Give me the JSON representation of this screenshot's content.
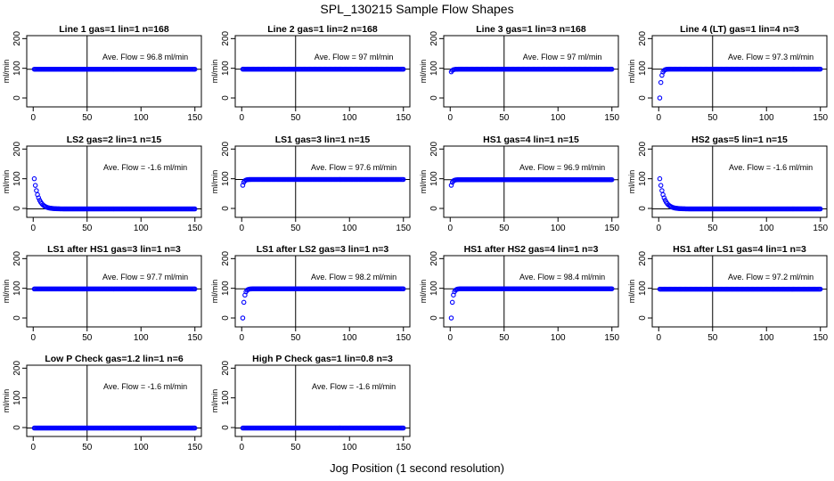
{
  "title": "SPL_130215  Sample Flow Shapes",
  "xlabel": "Jog Position (1 second resolution)",
  "chart_data": {
    "type": "scatter",
    "shared": {
      "ylabel": "ml/min",
      "xlim": [
        0,
        150
      ],
      "ylim": [
        0,
        200
      ],
      "xticks": [
        0,
        50,
        100,
        150
      ],
      "yticks": [
        0,
        100,
        200
      ],
      "vline_x": 50,
      "avg_label_suffix": "ml/min",
      "point_color": "#0000ff",
      "hline_color": "#000000"
    },
    "panels": [
      {
        "title": "Line 1 gas=1 lin=1 n=168",
        "avg_text": "Ave. Flow = 96.8",
        "avg": 96.8,
        "shape": "flat",
        "start": 96.8
      },
      {
        "title": "Line 2 gas=1 lin=2 n=168",
        "avg_text": "Ave. Flow = 97",
        "avg": 97,
        "shape": "flat",
        "start": 97
      },
      {
        "title": "Line 3 gas=1 lin=3 n=168",
        "avg_text": "Ave. Flow = 97",
        "avg": 97,
        "shape": "rise",
        "start": 88
      },
      {
        "title": "Line 4 (LT) gas=1 lin=4 n=3",
        "avg_text": "Ave. Flow = 97.3",
        "avg": 97.3,
        "shape": "rise",
        "start": 0
      },
      {
        "title": "LS2 gas=2 lin=1 n=15",
        "avg_text": "Ave. Flow = -1.6",
        "avg": -1.6,
        "shape": "decay",
        "start": 100
      },
      {
        "title": "LS1 gas=3 lin=1 n=15",
        "avg_text": "Ave. Flow = 97.6",
        "avg": 97.6,
        "shape": "rise",
        "start": 78
      },
      {
        "title": "HS1 gas=4 lin=1 n=15",
        "avg_text": "Ave. Flow = 96.9",
        "avg": 96.9,
        "shape": "rise",
        "start": 78
      },
      {
        "title": "HS2 gas=5 lin=1 n=15",
        "avg_text": "Ave. Flow = -1.6",
        "avg": -1.6,
        "shape": "decay",
        "start": 100
      },
      {
        "title": "LS1 after HS1 gas=3 lin=1 n=3",
        "avg_text": "Ave. Flow = 97.7",
        "avg": 97.7,
        "shape": "flat",
        "start": 97.7
      },
      {
        "title": "LS1 after LS2 gas=3 lin=1 n=3",
        "avg_text": "Ave. Flow = 98.2",
        "avg": 98.2,
        "shape": "rise",
        "start": 0
      },
      {
        "title": "HS1 after HS2 gas=4 lin=1 n=3",
        "avg_text": "Ave. Flow = 98.4",
        "avg": 98.4,
        "shape": "rise",
        "start": 0
      },
      {
        "title": "HS1 after LS1 gas=4 lin=1 n=3",
        "avg_text": "Ave. Flow = 97.2",
        "avg": 97.2,
        "shape": "flat",
        "start": 97.2
      },
      {
        "title": "Low P Check gas=1.2 lin=1 n=6",
        "avg_text": "Ave. Flow = -1.6",
        "avg": -1.6,
        "shape": "flat",
        "start": -1.6
      },
      {
        "title": "High P Check gas=1 lin=0.8 n=3",
        "avg_text": "Ave. Flow = -1.6",
        "avg": -1.6,
        "shape": "flat",
        "start": -1.6
      }
    ]
  }
}
